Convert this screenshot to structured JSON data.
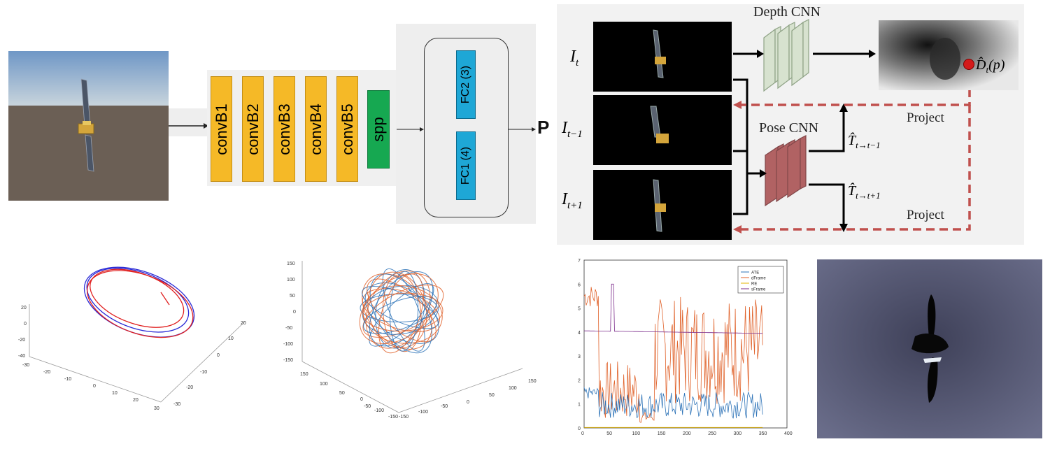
{
  "network": {
    "blocks": [
      "convB1",
      "convB2",
      "convB3",
      "convB4",
      "convB5"
    ],
    "spp": "spp",
    "fc2": "FC2 (3)",
    "fc1": "FC1 (4)",
    "output": "P"
  },
  "pipeline": {
    "depth_cnn": "Depth CNN",
    "pose_cnn": "Pose CNN",
    "project_top": "Project",
    "project_bottom": "Project",
    "frame_labels": [
      "I_t",
      "I_{t-1}",
      "I_{t+1}"
    ],
    "depth_label": "D_t(p)",
    "pose_labels": [
      "T_{t→t-1}",
      "T_{t→t+1}"
    ]
  },
  "plot1": {
    "z_ticks": [
      "20",
      "0",
      "-20",
      "-40"
    ],
    "x_ticks": [
      "-30",
      "-20",
      "-10",
      "0",
      "10",
      "20",
      "30"
    ],
    "y_ticks": [
      "20",
      "10",
      "0",
      "-10",
      "-20",
      "-30"
    ],
    "colors": {
      "a": "#2a2ad6",
      "b": "#e02020"
    }
  },
  "plot2": {
    "z_ticks": [
      "150",
      "100",
      "50",
      "0",
      "-50",
      "-100",
      "-150"
    ],
    "x_ticks": [
      "150",
      "100",
      "50",
      "0",
      "-50",
      "-100",
      "-150"
    ],
    "y_ticks": [
      "150",
      "100",
      "50",
      "0",
      "-50",
      "-100",
      "-150"
    ],
    "colors": {
      "a": "#2f74b8",
      "b": "#e0622a"
    }
  },
  "chart_data": {
    "type": "line",
    "xlim": [
      0,
      400
    ],
    "ylim": [
      0,
      7
    ],
    "x_ticks": [
      "0",
      "50",
      "100",
      "150",
      "200",
      "250",
      "300",
      "350",
      "400"
    ],
    "y_ticks": [
      "0",
      "1",
      "2",
      "3",
      "4",
      "5",
      "6",
      "7"
    ],
    "legend_position": "top-right",
    "series": [
      {
        "name": "ATE",
        "color": "#2f74b8"
      },
      {
        "name": "dFrame",
        "color": "#e0622a"
      },
      {
        "name": "RE",
        "color": "#e6b400"
      },
      {
        "name": "sFrame",
        "color": "#7a2a8a"
      }
    ]
  }
}
